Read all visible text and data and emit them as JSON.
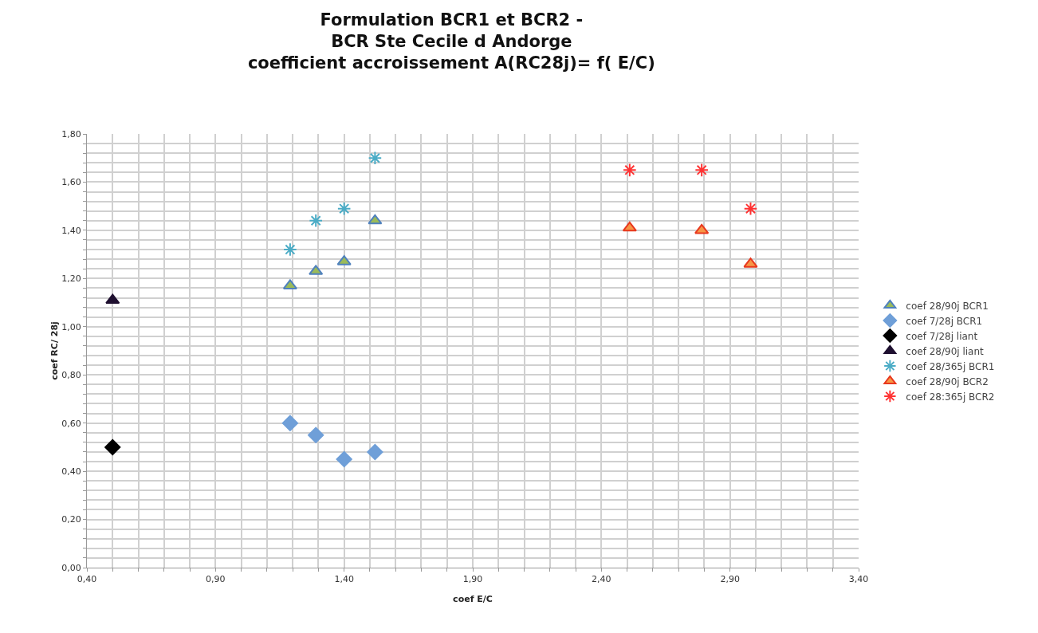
{
  "chart_data": {
    "type": "scatter",
    "title": "Formulation BCR1 et BCR2 -\nBCR Ste Cecile d Andorge\ncoefficient accroissement A(RC28j)= f( E/C)",
    "xlabel": "coef E/C",
    "ylabel": "coef RC/ 28j",
    "series": [
      {
        "name": "coef 28/90j BCR1",
        "color": "#9bbb59",
        "marker": "triangle",
        "x": [
          1.19,
          1.29,
          1.4,
          1.52
        ],
        "values": [
          1.17,
          1.23,
          1.27,
          1.44
        ]
      },
      {
        "name": "coef 7/28j BCR1",
        "color": "#6f9fd8",
        "marker": "diamond",
        "x": [
          1.19,
          1.29,
          1.4,
          1.52
        ],
        "values": [
          0.6,
          0.55,
          0.45,
          0.48
        ]
      },
      {
        "name": "coef 7/28j liant",
        "color": "#000000",
        "marker": "diamond",
        "x": [
          0.5
        ],
        "values": [
          0.5
        ]
      },
      {
        "name": "coef 28/90j liant",
        "color": "#1f1030",
        "marker": "triangle",
        "x": [
          0.5
        ],
        "values": [
          1.11
        ]
      },
      {
        "name": "coef 28/365j BCR1",
        "color": "#4bacc6",
        "marker": "cross",
        "x": [
          1.19,
          1.29,
          1.4,
          1.52
        ],
        "values": [
          1.32,
          1.44,
          1.49,
          1.7
        ]
      },
      {
        "name": "coef 28/90j BCR2",
        "color": "#f79646",
        "marker": "triangle",
        "x": [
          2.51,
          2.79,
          2.98
        ],
        "values": [
          1.41,
          1.4,
          1.26
        ]
      },
      {
        "name": "coef 28:365j BCR2",
        "color": "#ff3333",
        "marker": "cross",
        "x": [
          2.51,
          2.79,
          2.98
        ],
        "values": [
          1.65,
          1.65,
          1.49
        ]
      }
    ],
    "xlim": [
      0.4,
      3.4
    ],
    "xticks": [
      {
        "value": 0.4,
        "label": "0,40"
      },
      {
        "value": 0.5,
        "label": null
      },
      {
        "value": 0.6,
        "label": null
      },
      {
        "value": 0.7,
        "label": null
      },
      {
        "value": 0.8,
        "label": null
      },
      {
        "value": 0.9,
        "label": "0,90"
      },
      {
        "value": 1.0,
        "label": null
      },
      {
        "value": 1.1,
        "label": null
      },
      {
        "value": 1.2,
        "label": null
      },
      {
        "value": 1.3,
        "label": null
      },
      {
        "value": 1.4,
        "label": "1,40"
      },
      {
        "value": 1.5,
        "label": null
      },
      {
        "value": 1.6,
        "label": null
      },
      {
        "value": 1.7,
        "label": null
      },
      {
        "value": 1.8,
        "label": null
      },
      {
        "value": 1.9,
        "label": "1,90"
      },
      {
        "value": 2.0,
        "label": null
      },
      {
        "value": 2.1,
        "label": null
      },
      {
        "value": 2.2,
        "label": null
      },
      {
        "value": 2.3,
        "label": null
      },
      {
        "value": 2.4,
        "label": "2,40"
      },
      {
        "value": 2.5,
        "label": null
      },
      {
        "value": 2.6,
        "label": null
      },
      {
        "value": 2.7,
        "label": null
      },
      {
        "value": 2.8,
        "label": null
      },
      {
        "value": 2.9,
        "label": "2,90"
      },
      {
        "value": 3.0,
        "label": null
      },
      {
        "value": 3.1,
        "label": null
      },
      {
        "value": 3.2,
        "label": null
      },
      {
        "value": 3.3,
        "label": null
      },
      {
        "value": 3.4,
        "label": "3,40"
      }
    ],
    "ylim": [
      0,
      1.8
    ],
    "yticks": [
      {
        "value": 0,
        "label": "0,00"
      },
      {
        "value": 0.04,
        "label": null
      },
      {
        "value": 0.08,
        "label": null
      },
      {
        "value": 0.12,
        "label": null
      },
      {
        "value": 0.16,
        "label": null
      },
      {
        "value": 0.2,
        "label": "0,20"
      },
      {
        "value": 0.24,
        "label": null
      },
      {
        "value": 0.28,
        "label": null
      },
      {
        "value": 0.32,
        "label": null
      },
      {
        "value": 0.36,
        "label": null
      },
      {
        "value": 0.4,
        "label": "0,40"
      },
      {
        "value": 0.44,
        "label": null
      },
      {
        "value": 0.48,
        "label": null
      },
      {
        "value": 0.52,
        "label": null
      },
      {
        "value": 0.56,
        "label": null
      },
      {
        "value": 0.6,
        "label": "0,60"
      },
      {
        "value": 0.64,
        "label": null
      },
      {
        "value": 0.68,
        "label": null
      },
      {
        "value": 0.72,
        "label": null
      },
      {
        "value": 0.76,
        "label": null
      },
      {
        "value": 0.8,
        "label": "0,80"
      },
      {
        "value": 0.84,
        "label": null
      },
      {
        "value": 0.88,
        "label": null
      },
      {
        "value": 0.92,
        "label": null
      },
      {
        "value": 0.96,
        "label": null
      },
      {
        "value": 1.0,
        "label": "1,00"
      },
      {
        "value": 1.04,
        "label": null
      },
      {
        "value": 1.08,
        "label": null
      },
      {
        "value": 1.12,
        "label": null
      },
      {
        "value": 1.16,
        "label": null
      },
      {
        "value": 1.2,
        "label": "1,20"
      },
      {
        "value": 1.24,
        "label": null
      },
      {
        "value": 1.28,
        "label": null
      },
      {
        "value": 1.32,
        "label": null
      },
      {
        "value": 1.36,
        "label": null
      },
      {
        "value": 1.4,
        "label": "1,40"
      },
      {
        "value": 1.44,
        "label": null
      },
      {
        "value": 1.48,
        "label": null
      },
      {
        "value": 1.52,
        "label": null
      },
      {
        "value": 1.56,
        "label": null
      },
      {
        "value": 1.6,
        "label": "1,60"
      },
      {
        "value": 1.64,
        "label": null
      },
      {
        "value": 1.68,
        "label": null
      },
      {
        "value": 1.72,
        "label": null
      },
      {
        "value": 1.76,
        "label": null
      },
      {
        "value": 1.8,
        "label": "1,80"
      }
    ],
    "grid": true,
    "legend": "right"
  }
}
